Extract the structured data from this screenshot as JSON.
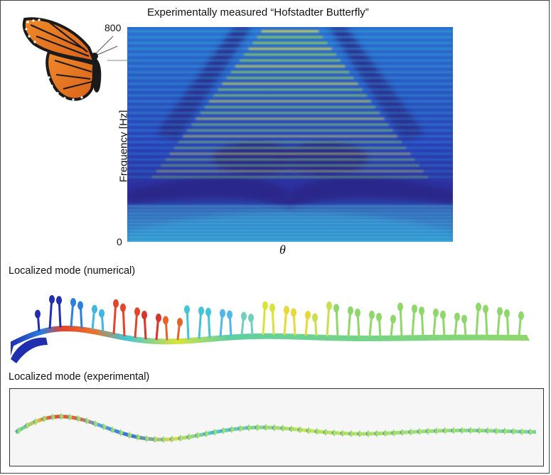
{
  "figure": {
    "title": "Experimentally measured “Hofstadter Butterfly”",
    "y_axis_label": "Frequency [Hz]",
    "y_tick_max": "800",
    "y_tick_min": "0",
    "x_axis_label": "θ",
    "caption_numerical": "Localized mode (numerical)",
    "caption_experimental": "Localized mode (experimental)"
  },
  "colors": {
    "background_dark": "#2a2a9a",
    "band_low": "#1e90d6",
    "band_high": "#e8e23a",
    "butterfly_orange": "#e8731e",
    "butterfly_black": "#1a1a1a"
  },
  "icons": {
    "butterfly": "monarch-butterfly-icon"
  }
}
